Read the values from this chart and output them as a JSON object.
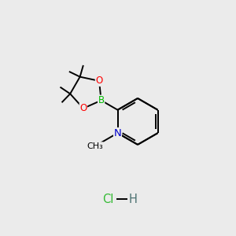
{
  "bg_color": "#ebebeb",
  "bond_color": "#000000",
  "bond_width": 1.4,
  "atom_colors": {
    "B": "#00bb00",
    "O": "#ff0000",
    "N": "#0000cc",
    "Cl": "#33bb33",
    "H": "#4a7070",
    "C": "#000000"
  },
  "font_size": 8.5,
  "hcl_font_size": 10.5
}
